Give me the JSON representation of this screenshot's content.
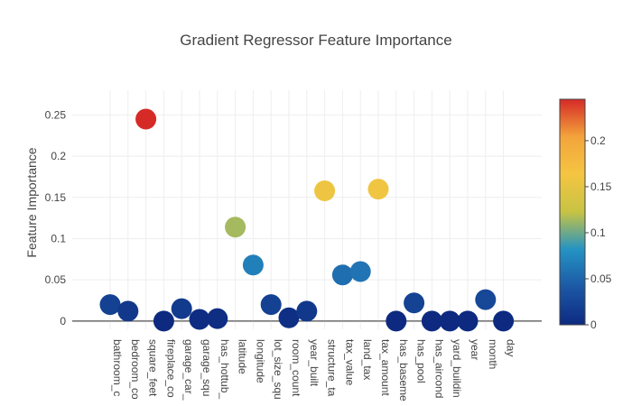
{
  "chart_data": {
    "type": "scatter",
    "title": "Gradient Regressor Feature Importance",
    "xlabel": "",
    "ylabel": "Feature Importance",
    "ylim": [
      -0.01,
      0.28
    ],
    "yticks": [
      {
        "value": 0,
        "label": "0"
      },
      {
        "value": 0.05,
        "label": "0.05"
      },
      {
        "value": 0.1,
        "label": "0.1"
      },
      {
        "value": 0.15,
        "label": "0.15"
      },
      {
        "value": 0.2,
        "label": "0.2"
      },
      {
        "value": 0.25,
        "label": "0.25"
      }
    ],
    "grid": true,
    "colorscale": [
      "#0d2a80",
      "#1c58a4",
      "#2493c4",
      "#c7c344",
      "#f4c542",
      "#f3a43c",
      "#d62a26"
    ],
    "colorbar": {
      "range": [
        0,
        0.245
      ],
      "ticks": [
        {
          "value": 0,
          "label": "0"
        },
        {
          "value": 0.05,
          "label": "0.05"
        },
        {
          "value": 0.1,
          "label": "0.1"
        },
        {
          "value": 0.15,
          "label": "0.15"
        },
        {
          "value": 0.2,
          "label": "0.2"
        }
      ]
    },
    "points": [
      {
        "label": "bathroom_c",
        "value": 0.02
      },
      {
        "label": "bedroom_co",
        "value": 0.012
      },
      {
        "label": "square_feet",
        "value": 0.245
      },
      {
        "label": "fireplace_co",
        "value": 0.0
      },
      {
        "label": "garage_car_",
        "value": 0.015
      },
      {
        "label": "garage_squ",
        "value": 0.002
      },
      {
        "label": "has_hottub_",
        "value": 0.003
      },
      {
        "label": "latitude",
        "value": 0.114
      },
      {
        "label": "longitude",
        "value": 0.068
      },
      {
        "label": "lot_size_squ",
        "value": 0.02
      },
      {
        "label": "room_count",
        "value": 0.004
      },
      {
        "label": "year_built",
        "value": 0.012
      },
      {
        "label": "structure_ta",
        "value": 0.158
      },
      {
        "label": "tax_value",
        "value": 0.056
      },
      {
        "label": "land_tax",
        "value": 0.06
      },
      {
        "label": "tax_amount",
        "value": 0.16
      },
      {
        "label": "has_baseme",
        "value": 0.0
      },
      {
        "label": "has_pool",
        "value": 0.022
      },
      {
        "label": "has_aircond",
        "value": 0.0
      },
      {
        "label": "yard_buildin",
        "value": 0.0
      },
      {
        "label": "year",
        "value": 0.0
      },
      {
        "label": "month",
        "value": 0.026
      },
      {
        "label": "day",
        "value": 0.0
      }
    ]
  }
}
